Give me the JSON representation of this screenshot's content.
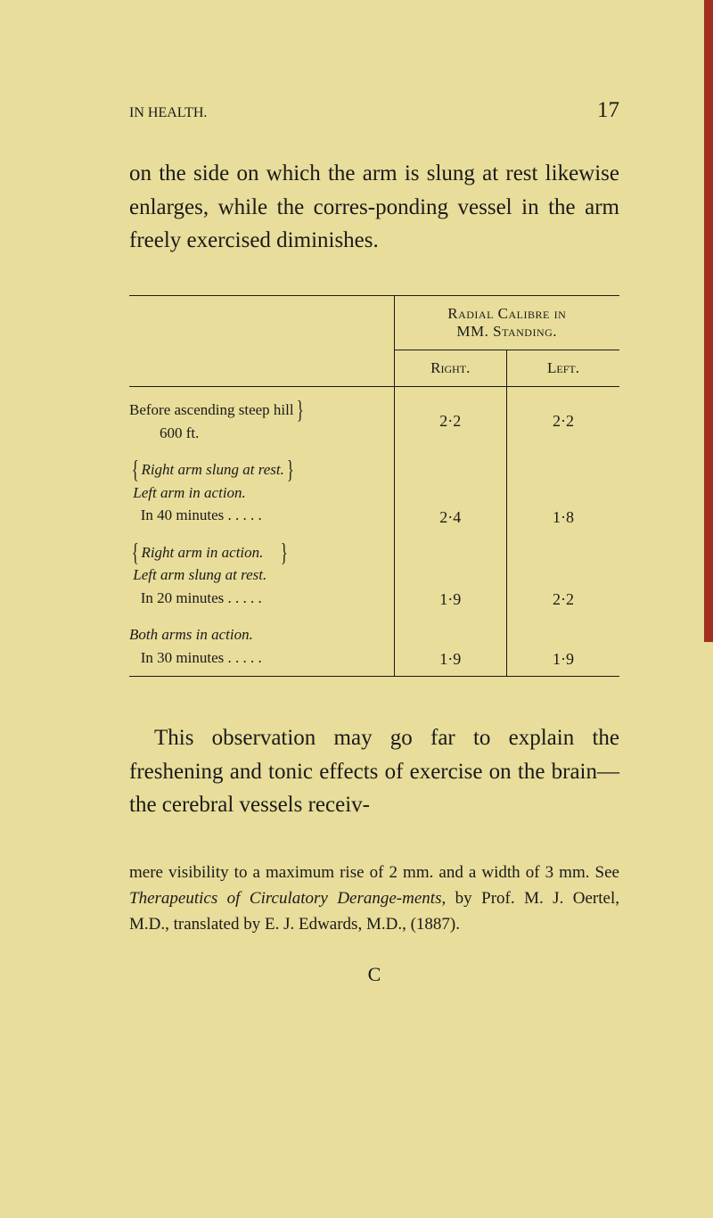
{
  "header": {
    "running_title": "IN HEALTH.",
    "page_number": "17"
  },
  "paragraphs": {
    "p1": "on the side on which the arm is slung at rest likewise enlarges, while the corres-ponding vessel in the arm freely exercised diminishes.",
    "p2": "This observation may go far to explain the freshening and tonic effects of exercise on the brain—the cerebral vessels receiv-"
  },
  "table": {
    "header_group_line1": "Radial Calibre in",
    "header_group_line2": "MM. Standing.",
    "col_right": "Right.",
    "col_left": "Left.",
    "rows": [
      {
        "desc_l1": "Before ascending steep hill",
        "desc_l2": "600 ft.",
        "right": "2·2",
        "left": "2·2"
      },
      {
        "pre_l1_a": "Right arm slung at rest.",
        "pre_l1_b": "Left arm in action.",
        "desc": "In 40 minutes . . . . .",
        "right": "2·4",
        "left": "1·8"
      },
      {
        "pre_l1_a": "Right arm in action.",
        "pre_l1_b": "Left arm slung at rest.",
        "desc": "In 20 minutes . . . . .",
        "right": "1·9",
        "left": "2·2"
      },
      {
        "pre": "Both arms in action.",
        "desc": "In 30 minutes . . . . .",
        "right": "1·9",
        "left": "1·9"
      }
    ]
  },
  "footnote": {
    "text_a": "mere visibility to a maximum rise of 2 mm. and a width of 3 mm. See ",
    "text_italic": "Therapeutics of Circulatory Derange-ments",
    "text_b": ", by Prof. M. J. Oertel, M.D., translated by E. J. Edwards, M.D., (1887)."
  },
  "signature": "C",
  "colors": {
    "background": "#e8dd9a",
    "text": "#1a1a1a",
    "edge": "#a13020"
  }
}
